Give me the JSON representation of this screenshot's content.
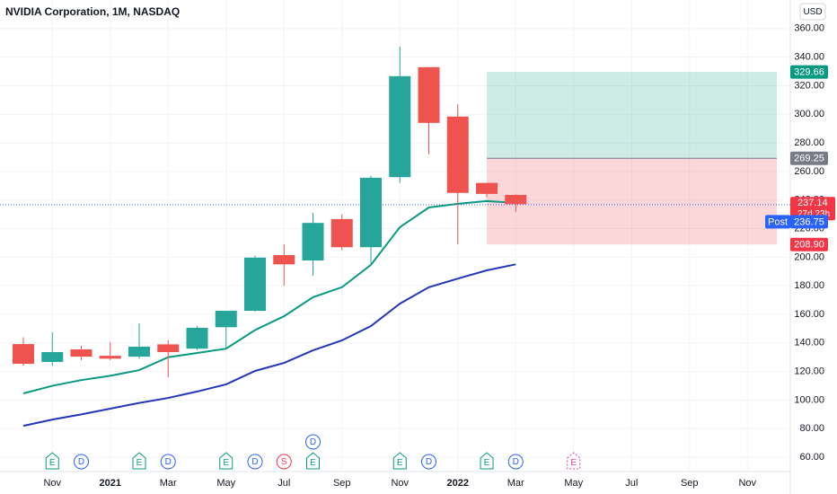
{
  "chart_data": {
    "type": "candlestick",
    "title": "NVIDIA Corporation, 1M, NASDAQ",
    "currency": "USD",
    "categories": [
      null,
      "Nov",
      null,
      "2021",
      null,
      "Mar",
      null,
      "May",
      null,
      "Jul",
      null,
      "Sep",
      null,
      "Nov",
      null,
      "2022",
      null,
      "Mar",
      null,
      "May",
      null,
      "Jul",
      null,
      "Sep",
      null,
      "Nov"
    ],
    "open": [
      139.2,
      126.7,
      135.5,
      131.0,
      130.4,
      139.0,
      136.0,
      151.0,
      162.5,
      201.5,
      197.7,
      226.7,
      207.0,
      256.0,
      333.0,
      298.4,
      252.0,
      243.6,
      null,
      null,
      null,
      null,
      null,
      null,
      null,
      null
    ],
    "high": [
      144.0,
      147.4,
      138.0,
      140.5,
      153.7,
      142.0,
      152.0,
      162.0,
      201.0,
      209.0,
      231.0,
      230.0,
      257.0,
      347.4,
      333.0,
      307.0,
      252.0,
      244.0,
      null,
      null,
      null,
      null,
      null,
      null,
      null,
      null
    ],
    "low": [
      124.0,
      124.0,
      128.0,
      128.0,
      129.0,
      116.0,
      135.0,
      136.0,
      162.0,
      180.0,
      187.0,
      205.0,
      194.0,
      252.0,
      272.0,
      209.0,
      242.0,
      231.7,
      null,
      null,
      null,
      null,
      null,
      null,
      null,
      null
    ],
    "close": [
      125.4,
      133.6,
      130.4,
      129.0,
      137.4,
      133.6,
      150.6,
      162.5,
      199.7,
      195.0,
      224.0,
      207.0,
      255.6,
      326.7,
      294.0,
      245.0,
      244.3,
      237.1,
      null,
      null,
      null,
      null,
      null,
      null,
      null,
      null
    ],
    "up_color": "#26a69a",
    "down_color": "#ef5350",
    "moving_averages": [
      {
        "color": "#089981",
        "values": [
          104.7,
          110.0,
          114.0,
          117.0,
          121.0,
          130.0,
          133.0,
          136.0,
          149.0,
          158.7,
          172.0,
          179.0,
          194.6,
          221.0,
          234.8,
          237.4,
          239.3,
          238.0,
          null,
          null,
          null,
          null,
          null,
          null,
          null,
          null
        ]
      },
      {
        "color": "#2436b8",
        "values": [
          82.0,
          86.4,
          90.0,
          94.0,
          98.0,
          101.5,
          106.0,
          111.0,
          120.4,
          126.0,
          134.8,
          141.8,
          151.8,
          167.5,
          179.0,
          185.0,
          190.8,
          195.0,
          null,
          null,
          null,
          null,
          null,
          null,
          null,
          null
        ]
      }
    ],
    "ylim": [
      50,
      380
    ],
    "yticks": [
      {
        "value": 60,
        "label": "60.00"
      },
      {
        "value": 80,
        "label": "80.00"
      },
      {
        "value": 100,
        "label": "100.00"
      },
      {
        "value": 120,
        "label": "120.00"
      },
      {
        "value": 140,
        "label": "140.00"
      },
      {
        "value": 160,
        "label": "160.00"
      },
      {
        "value": 180,
        "label": "180.00"
      },
      {
        "value": 200,
        "label": "200.00"
      },
      {
        "value": 220,
        "label": "220.00"
      },
      {
        "value": 240,
        "label": "240.00"
      },
      {
        "value": 260,
        "label": "260.00"
      },
      {
        "value": 280,
        "label": "280.00"
      },
      {
        "value": 300,
        "label": "300.00"
      },
      {
        "value": 320,
        "label": "320.00"
      },
      {
        "value": 340,
        "label": "340.00"
      },
      {
        "value": 360,
        "label": "360.00"
      }
    ],
    "grid": true,
    "position": {
      "target": {
        "value": 329.66,
        "label": "329.66"
      },
      "entry": {
        "value": 269.25,
        "label": "269.25"
      },
      "stop": {
        "value": 208.9,
        "label": "208.90"
      }
    },
    "last_price": {
      "value": 237.14,
      "label": "237.14",
      "countdown": "27d 23h"
    },
    "post_price": {
      "value": 236.75,
      "label": "236.75",
      "session": "Post"
    },
    "earnings": [
      null,
      "E",
      null,
      null,
      "E",
      null,
      null,
      "E",
      null,
      null,
      "E",
      null,
      null,
      "E",
      null,
      null,
      "E",
      null,
      null,
      "E",
      null,
      null,
      null,
      null,
      null,
      null
    ],
    "dividends": [
      null,
      null,
      "D",
      null,
      null,
      "D",
      null,
      null,
      "D",
      null,
      "D",
      null,
      null,
      null,
      "D",
      null,
      null,
      "D",
      null,
      null,
      null,
      null,
      null,
      null,
      null,
      null
    ],
    "splits": [
      null,
      null,
      null,
      null,
      null,
      null,
      null,
      null,
      null,
      "S",
      null,
      null,
      null,
      null,
      null,
      null,
      null,
      null,
      null,
      null,
      null,
      null,
      null,
      null,
      null,
      null
    ]
  }
}
